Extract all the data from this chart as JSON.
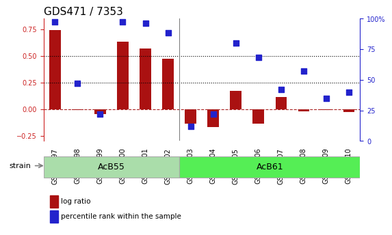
{
  "title": "GDS471 / 7353",
  "samples": [
    "GSM10997",
    "GSM10998",
    "GSM10999",
    "GSM11000",
    "GSM11001",
    "GSM11002",
    "GSM11003",
    "GSM11004",
    "GSM11005",
    "GSM11006",
    "GSM11007",
    "GSM11008",
    "GSM11009",
    "GSM11010"
  ],
  "log_ratio": [
    0.74,
    -0.01,
    -0.05,
    0.63,
    0.57,
    0.47,
    -0.14,
    -0.17,
    0.17,
    -0.14,
    0.11,
    -0.02,
    -0.01,
    -0.03
  ],
  "percentile_rank": [
    97,
    47,
    22,
    97,
    96,
    88,
    12,
    22,
    80,
    68,
    42,
    57,
    35,
    40
  ],
  "groups": [
    {
      "name": "AcB55",
      "start": 0,
      "end": 5,
      "color": "#aaddaa"
    },
    {
      "name": "AcB61",
      "start": 6,
      "end": 13,
      "color": "#55ee55"
    }
  ],
  "bar_color": "#aa1111",
  "dot_color": "#2222cc",
  "ylim_left": [
    -0.3,
    0.85
  ],
  "ylim_right": [
    0,
    100
  ],
  "yticks_left": [
    -0.25,
    0,
    0.25,
    0.5,
    0.75
  ],
  "yticks_right": [
    0,
    25,
    50,
    75,
    100
  ],
  "hline_y": [
    0.25,
    0.5
  ],
  "title_fontsize": 11,
  "tick_fontsize": 7,
  "group_label_fontsize": 9,
  "strain_label": "strain",
  "legend_log_ratio": "log ratio",
  "legend_percentile": "percentile rank within the sample"
}
